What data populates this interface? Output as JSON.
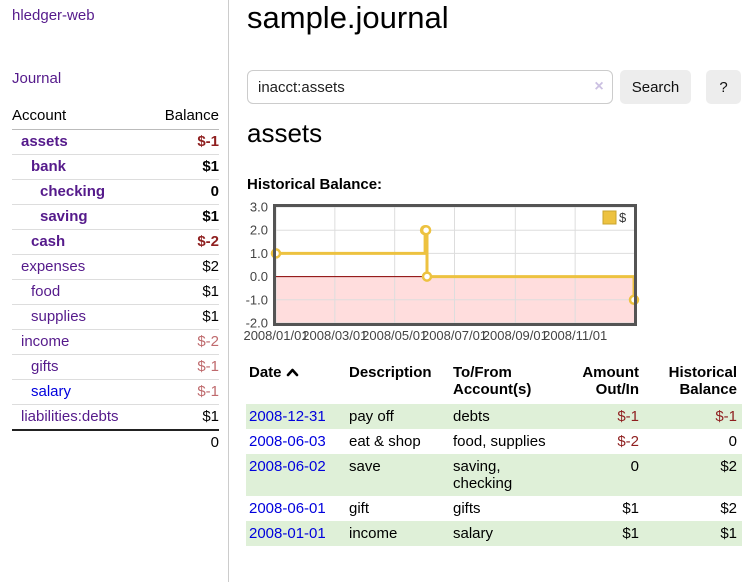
{
  "colors": {
    "link_purple": "#551a8b",
    "link_blue": "#0000dd",
    "negative_strong": "#8f1f1f",
    "negative_soft": "#bf6a6d",
    "row_stripe_green": "#dff0d8",
    "chart_series_yellow": "#EDC240",
    "chart_negative_region": "#ffdddd",
    "chart_zero_line": "#8b0000"
  },
  "sidebar": {
    "title": "hledger-web",
    "nav_journal": "Journal",
    "accounts_header": {
      "account": "Account",
      "balance": "Balance"
    },
    "accounts": [
      {
        "name": "assets",
        "depth": 1,
        "bold": true,
        "balance": "$-1",
        "balance_style": "neg-strong"
      },
      {
        "name": "bank",
        "depth": 2,
        "bold": true,
        "balance": "$1",
        "balance_style": "pos"
      },
      {
        "name": "checking",
        "depth": 3,
        "bold": true,
        "balance": "0",
        "balance_style": "pos"
      },
      {
        "name": "saving",
        "depth": 3,
        "bold": true,
        "balance": "$1",
        "balance_style": "pos"
      },
      {
        "name": "cash",
        "depth": 2,
        "bold": true,
        "balance": "$-2",
        "balance_style": "neg-strong"
      },
      {
        "name": "expenses",
        "depth": 1,
        "bold": false,
        "balance": "$2",
        "balance_style": "pos"
      },
      {
        "name": "food",
        "depth": 2,
        "bold": false,
        "balance": "$1",
        "balance_style": "pos"
      },
      {
        "name": "supplies",
        "depth": 2,
        "bold": false,
        "balance": "$1",
        "balance_style": "pos"
      },
      {
        "name": "income",
        "depth": 1,
        "bold": false,
        "balance": "$-2",
        "balance_style": "neg-soft"
      },
      {
        "name": "gifts",
        "depth": 2,
        "bold": false,
        "balance": "$-1",
        "balance_style": "neg-soft"
      },
      {
        "name": "salary",
        "depth": 2,
        "bold": false,
        "balance": "$-1",
        "balance_style": "neg-soft",
        "link_style": "blue"
      },
      {
        "name": "liabilities:debts",
        "depth": 1,
        "bold": false,
        "balance": "$1",
        "balance_style": "pos"
      }
    ],
    "total": "0"
  },
  "main": {
    "title": "sample.journal",
    "search": {
      "value": "inacct:assets",
      "clear_icon": "×",
      "search_label": "Search",
      "help_label": "?"
    },
    "account_heading": "assets",
    "chart_heading": "Historical Balance:"
  },
  "chart_data": {
    "type": "line",
    "step": true,
    "title": "Historical Balance",
    "series": [
      {
        "name": "$",
        "color": "#EDC240",
        "points": [
          [
            "2008-01-01",
            1
          ],
          [
            "2008-06-01",
            2
          ],
          [
            "2008-06-02",
            2
          ],
          [
            "2008-06-03",
            0
          ],
          [
            "2008-12-31",
            -1
          ]
        ]
      }
    ],
    "x_range": [
      "2008-01-01",
      "2008-12-31"
    ],
    "x_tick_labels": [
      "2008/01/01",
      "2008/03/01",
      "2008/05/01",
      "2008/07/01",
      "2008/09/01",
      "2008/11/01"
    ],
    "y_tick_labels": [
      "3.0",
      "2.0",
      "1.0",
      "0.0",
      "-1.0",
      "-2.0"
    ],
    "ylim": [
      -2,
      3
    ],
    "grid": true,
    "legend_position": "top-right",
    "negative_region_color": "#ffdddd",
    "zero_line_color": "#8b0000",
    "marker_fill": "#ffffff"
  },
  "register": {
    "headers": [
      "Date",
      "Description",
      "To/From Account(s)",
      "Amount Out/In",
      "Historical Balance"
    ],
    "sort": "ascending",
    "rows": [
      {
        "date": "2008-12-31",
        "description": "pay off",
        "accounts": "debts",
        "amount": "$-1",
        "amount_negative": true,
        "balance": "$-1",
        "balance_negative": true
      },
      {
        "date": "2008-06-03",
        "description": "eat & shop",
        "accounts": "food, supplies",
        "amount": "$-2",
        "amount_negative": true,
        "balance": "0",
        "balance_negative": false
      },
      {
        "date": "2008-06-02",
        "description": "save",
        "accounts": "saving, checking",
        "amount": "0",
        "amount_negative": false,
        "balance": "$2",
        "balance_negative": false
      },
      {
        "date": "2008-06-01",
        "description": "gift",
        "accounts": "gifts",
        "amount": "$1",
        "amount_negative": false,
        "balance": "$2",
        "balance_negative": false
      },
      {
        "date": "2008-01-01",
        "description": "income",
        "accounts": "salary",
        "amount": "$1",
        "amount_negative": false,
        "balance": "$1",
        "balance_negative": false
      }
    ]
  }
}
